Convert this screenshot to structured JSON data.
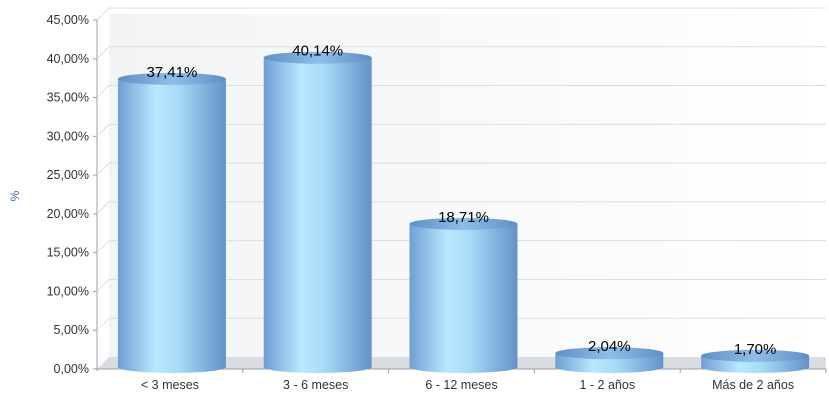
{
  "chart_data": {
    "type": "bar",
    "style": "3d-cylinder",
    "categories": [
      "< 3 meses",
      "3 - 6 meses",
      "6 - 12 meses",
      "1 - 2 años",
      "Más de 2 años"
    ],
    "values": [
      37.41,
      40.14,
      18.71,
      2.04,
      1.7
    ],
    "data_labels": [
      "37,41%",
      "40,14%",
      "18,71%",
      "2,04%",
      "1,70%"
    ],
    "ylabel": "%",
    "ylim": [
      0,
      45
    ],
    "yticks": [
      0,
      5,
      10,
      15,
      20,
      25,
      30,
      35,
      40,
      45
    ],
    "ytick_labels": [
      "0,00%",
      "5,00%",
      "10,00%",
      "15,00%",
      "20,00%",
      "25,00%",
      "30,00%",
      "35,00%",
      "40,00%",
      "45,00%"
    ],
    "grid": true,
    "legend": "none",
    "colors": {
      "bar": "#8fc3ea",
      "bar_highlight": "#c9efff",
      "bar_shade": "#5f93c9",
      "bar_top": "#6fa3d6",
      "grid": "#dddddd",
      "axis": "#9aa0a8"
    }
  }
}
